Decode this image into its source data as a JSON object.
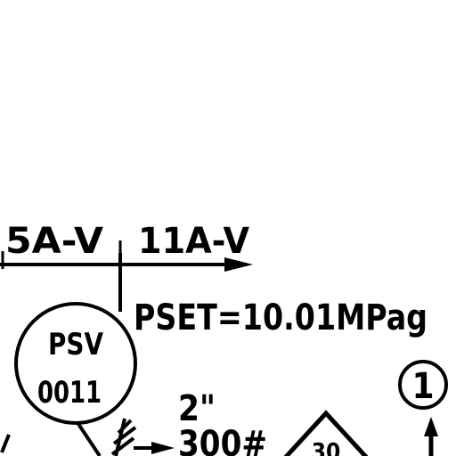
{
  "diagram": {
    "line_labels": {
      "left": "5A-V",
      "right": "11A-V"
    },
    "valve": {
      "tag_top": "PSV",
      "tag_bottom": "0011",
      "set_pressure": "PSET=10.01MPag"
    },
    "outlet": {
      "size": "2\"",
      "rating": "300#"
    },
    "triangle_label": "30",
    "circle_marker": "1"
  }
}
